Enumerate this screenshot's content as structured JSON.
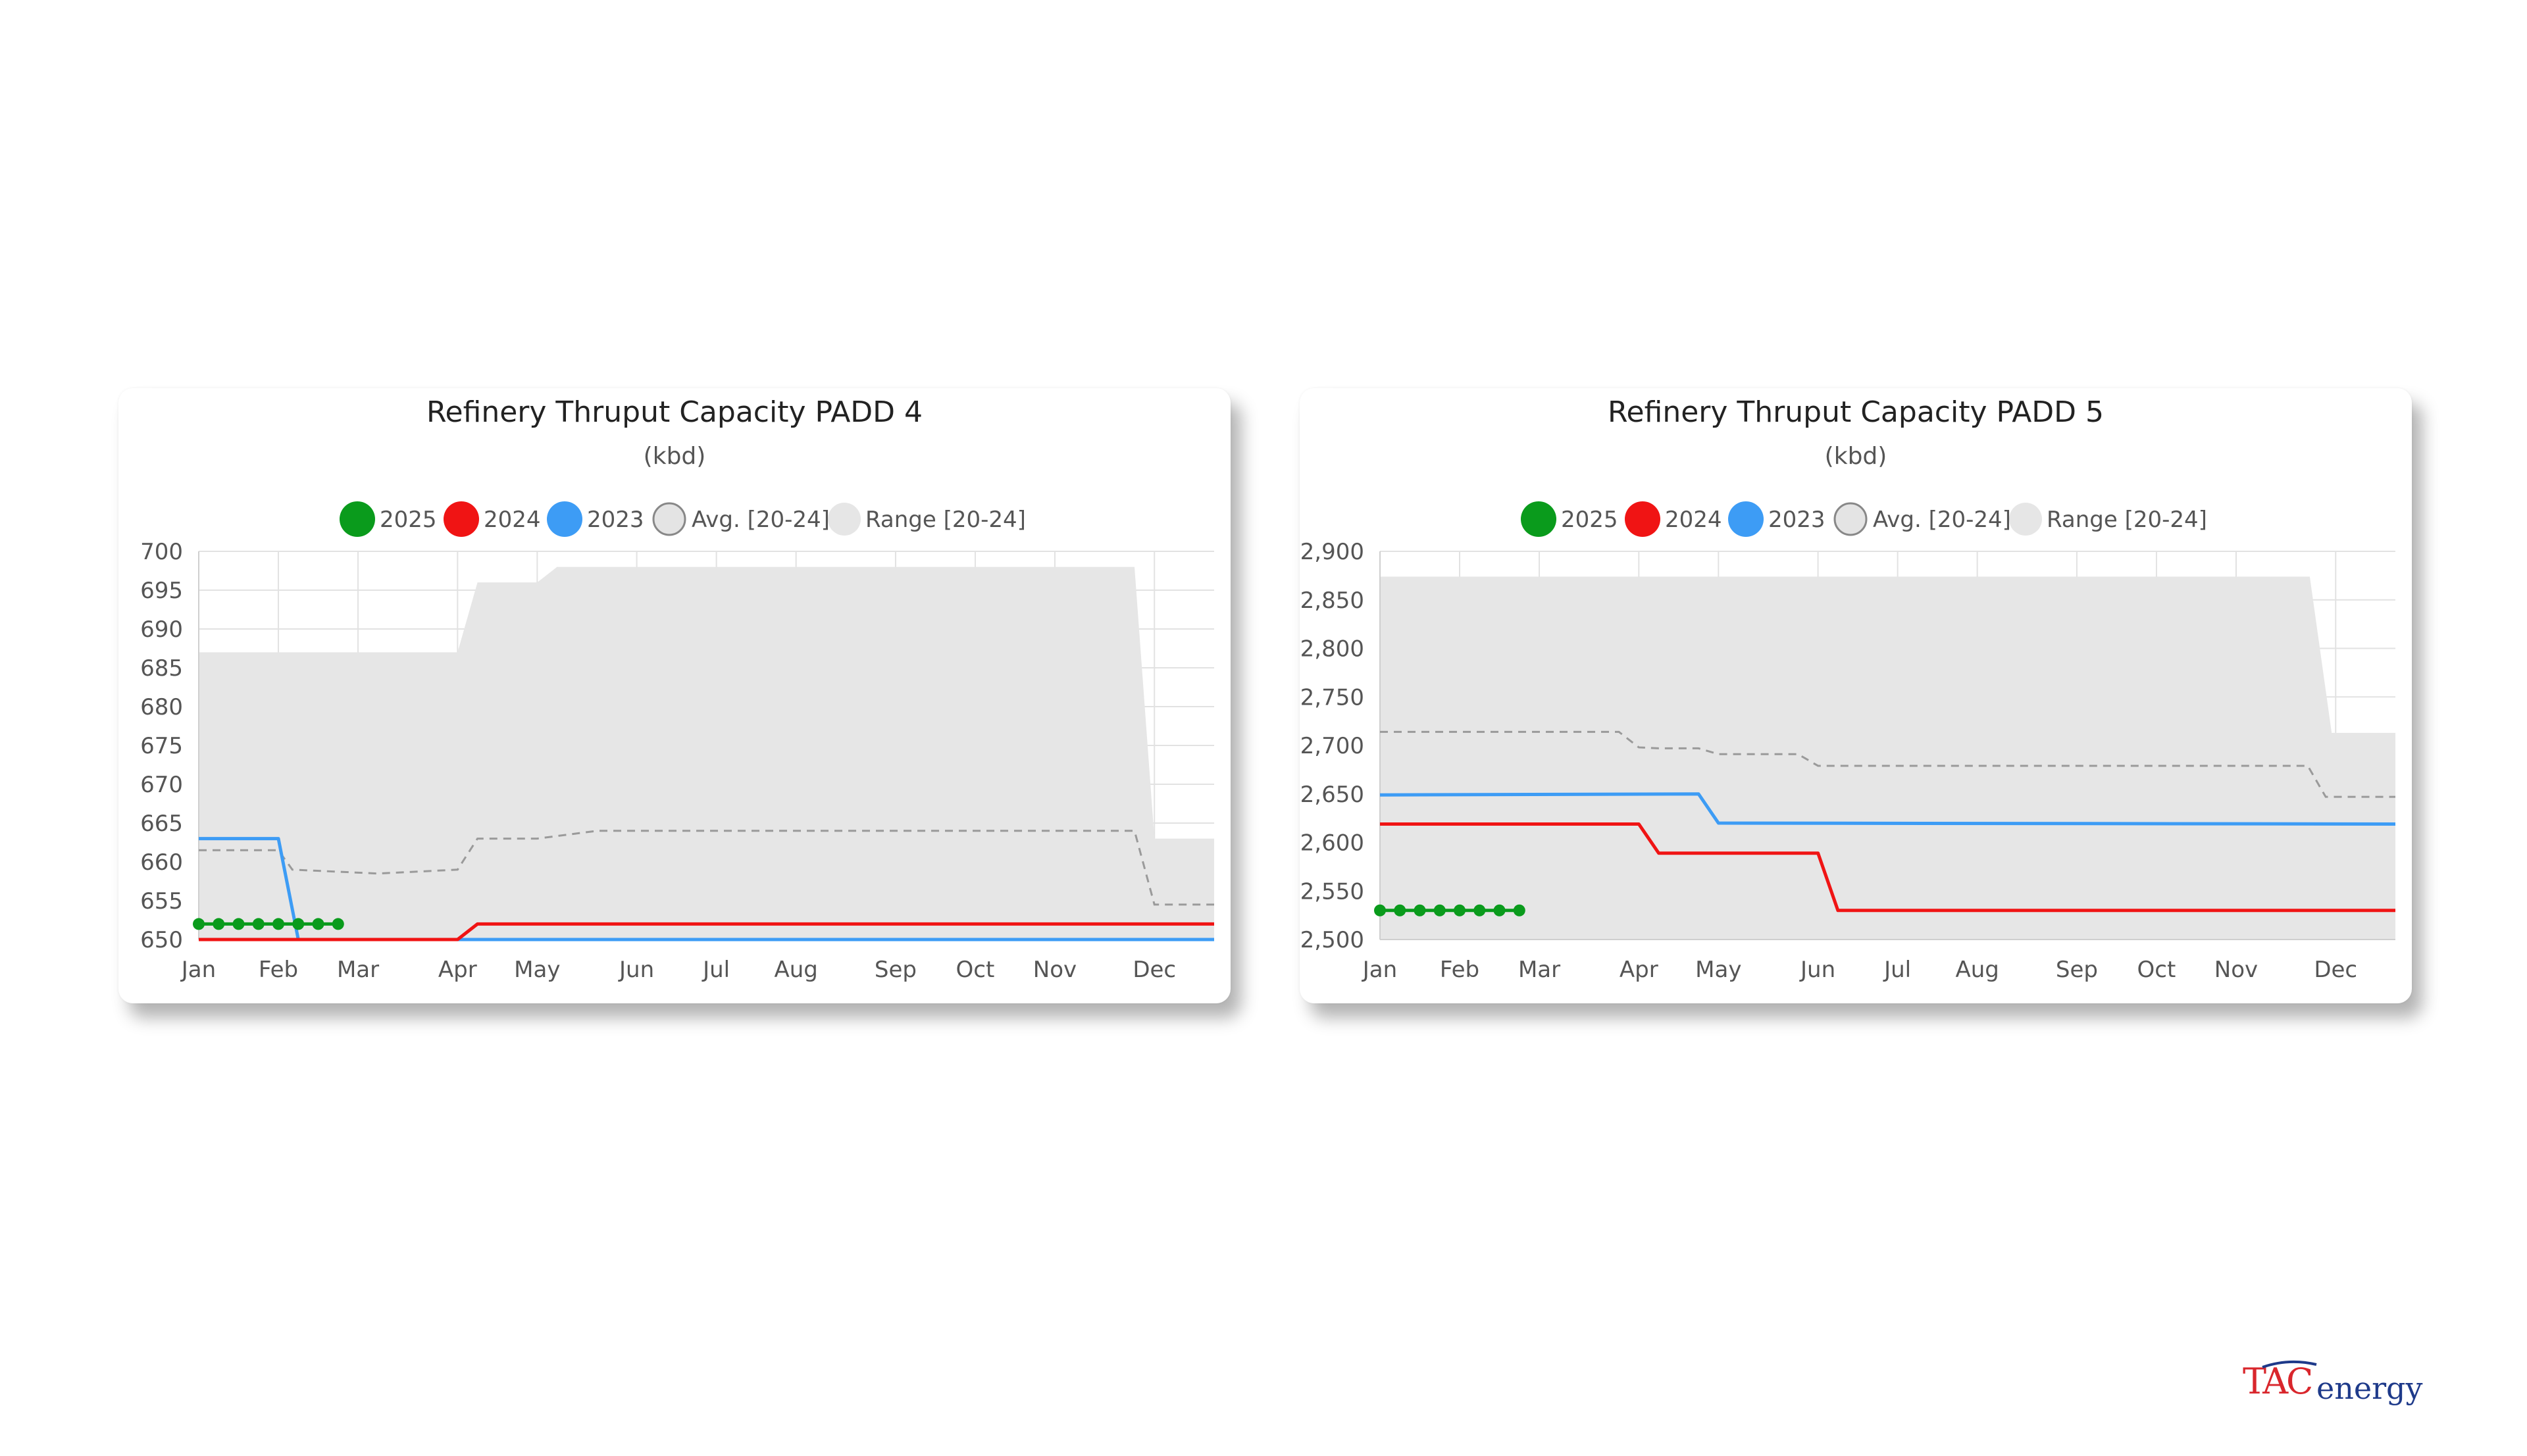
{
  "chart_data": [
    {
      "type": "line",
      "title": "Refinery Thruput Capacity PADD 4",
      "subtitle": "(kbd)",
      "xlabel": "",
      "ylabel": "",
      "ylim": [
        650,
        700
      ],
      "yticks": [
        650,
        655,
        660,
        665,
        670,
        675,
        680,
        685,
        690,
        695,
        700
      ],
      "ytick_labels": [
        "650",
        "655",
        "660",
        "665",
        "670",
        "675",
        "680",
        "685",
        "690",
        "695",
        "700"
      ],
      "xlim": [
        0,
        51
      ],
      "xticks": [
        0,
        4,
        8,
        13,
        17,
        22,
        26,
        30,
        35,
        39,
        43,
        48
      ],
      "xtick_labels": [
        "Jan",
        "Feb",
        "Mar",
        "Apr",
        "May",
        "Jun",
        "Jul",
        "Aug",
        "Sep",
        "Oct",
        "Nov",
        "Dec"
      ],
      "grid": true,
      "legend": [
        {
          "label": "2025",
          "color": "#0a9b1c",
          "kind": "series"
        },
        {
          "label": "2024",
          "color": "#f01414",
          "kind": "series"
        },
        {
          "label": "2023",
          "color": "#3d9cf5",
          "kind": "series"
        },
        {
          "label": "Avg. [20-24]",
          "color": "#e4e4e4",
          "kind": "avg"
        },
        {
          "label": "Range [20-24]",
          "color": "#e6e6e6",
          "kind": "range"
        }
      ],
      "range": {
        "x": [
          0,
          4,
          8,
          12,
          13,
          14,
          17,
          18,
          30,
          47,
          48,
          51
        ],
        "high": [
          687,
          687,
          687,
          687,
          687,
          696,
          696,
          698,
          698,
          698,
          663,
          663
        ],
        "low": [
          650,
          650,
          650,
          650,
          650,
          650,
          650,
          650,
          650,
          650,
          650,
          650
        ]
      },
      "avg": {
        "x": [
          0,
          4,
          4.7,
          9,
          13,
          14,
          17,
          20,
          30,
          47,
          48,
          51
        ],
        "y": [
          661.5,
          661.5,
          659,
          658.5,
          659,
          663,
          663,
          664,
          664,
          664,
          654.5,
          654.5
        ]
      },
      "series": [
        {
          "name": "2025",
          "color": "#0a9b1c",
          "markers": true,
          "x": [
            0,
            1,
            2,
            3,
            4,
            5,
            6,
            7
          ],
          "y": [
            652,
            652,
            652,
            652,
            652,
            652,
            652,
            652
          ]
        },
        {
          "name": "2024",
          "color": "#f01414",
          "markers": false,
          "x": [
            0,
            13,
            14,
            51
          ],
          "y": [
            650,
            650,
            652,
            652
          ]
        },
        {
          "name": "2023",
          "color": "#3d9cf5",
          "markers": false,
          "x": [
            0,
            4,
            5,
            51
          ],
          "y": [
            663,
            663,
            650,
            650
          ]
        }
      ]
    },
    {
      "type": "line",
      "title": "Refinery Thruput Capacity PADD 5",
      "subtitle": "(kbd)",
      "xlabel": "",
      "ylabel": "",
      "ylim": [
        2500,
        2900
      ],
      "yticks": [
        2500,
        2550,
        2600,
        2650,
        2700,
        2750,
        2800,
        2850,
        2900
      ],
      "ytick_labels": [
        "2,500",
        "2,550",
        "2,600",
        "2,650",
        "2,700",
        "2,750",
        "2,800",
        "2,850",
        "2,900"
      ],
      "xlim": [
        0,
        51
      ],
      "xticks": [
        0,
        4,
        8,
        13,
        17,
        22,
        26,
        30,
        35,
        39,
        43,
        48
      ],
      "xtick_labels": [
        "Jan",
        "Feb",
        "Mar",
        "Apr",
        "May",
        "Jun",
        "Jul",
        "Aug",
        "Sep",
        "Oct",
        "Nov",
        "Dec"
      ],
      "grid": true,
      "legend": [
        {
          "label": "2025",
          "color": "#0a9b1c",
          "kind": "series"
        },
        {
          "label": "2024",
          "color": "#f01414",
          "kind": "series"
        },
        {
          "label": "2023",
          "color": "#3d9cf5",
          "kind": "series"
        },
        {
          "label": "Avg. [20-24]",
          "color": "#e4e4e4",
          "kind": "avg"
        },
        {
          "label": "Range [20-24]",
          "color": "#e6e6e6",
          "kind": "range"
        }
      ],
      "range": {
        "x": [
          0,
          4,
          8,
          13,
          17,
          22,
          30,
          46.7,
          47.8,
          51
        ],
        "high": [
          2874,
          2874,
          2874,
          2874,
          2874,
          2874,
          2874,
          2874,
          2713,
          2713
        ],
        "low": [
          2500,
          2500,
          2500,
          2500,
          2500,
          2500,
          2500,
          2500,
          2500,
          2500
        ]
      },
      "avg": {
        "x": [
          0,
          12,
          13,
          14,
          16,
          17,
          21,
          22,
          30,
          46.6,
          47.5,
          51
        ],
        "y": [
          2714,
          2714,
          2698,
          2697,
          2697,
          2691,
          2691,
          2679,
          2679,
          2679,
          2647,
          2647
        ]
      },
      "series": [
        {
          "name": "2025",
          "color": "#0a9b1c",
          "markers": true,
          "x": [
            0,
            1,
            2,
            3,
            4,
            5,
            6,
            7
          ],
          "y": [
            2530,
            2530,
            2530,
            2530,
            2530,
            2530,
            2530,
            2530
          ]
        },
        {
          "name": "2024",
          "color": "#f01414",
          "markers": false,
          "x": [
            0,
            13,
            14,
            22,
            23,
            51
          ],
          "y": [
            2619,
            2619,
            2589,
            2589,
            2530,
            2530
          ]
        },
        {
          "name": "2023",
          "color": "#3d9cf5",
          "markers": false,
          "x": [
            0,
            16,
            17,
            51
          ],
          "y": [
            2649,
            2650,
            2620,
            2619
          ]
        }
      ]
    }
  ],
  "branding": {
    "logo_text_tac": "TAC",
    "logo_text_energy": "energy"
  }
}
